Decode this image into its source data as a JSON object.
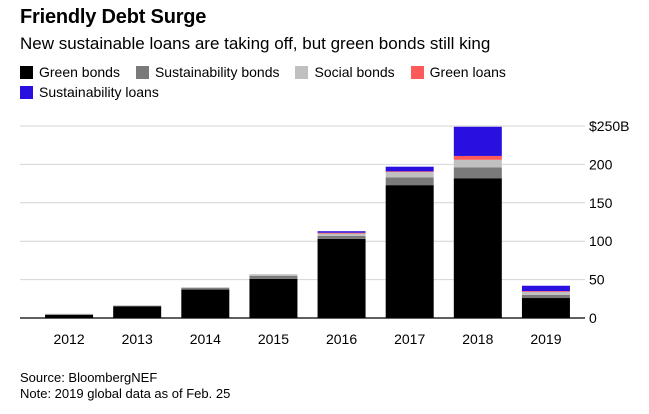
{
  "title": "Friendly Debt Surge",
  "subtitle": "New sustainable loans are taking off, but green bonds still king",
  "legend": [
    {
      "label": "Green bonds",
      "color": "#000000"
    },
    {
      "label": "Sustainability bonds",
      "color": "#7a7a7a"
    },
    {
      "label": "Social bonds",
      "color": "#c0c0c0"
    },
    {
      "label": "Green loans",
      "color": "#ff5a5a"
    },
    {
      "label": "Sustainability loans",
      "color": "#2a10e0"
    }
  ],
  "source": "Source: BloombergNEF",
  "note": "Note: 2019 global data as of Feb. 25",
  "chart_data": {
    "type": "bar",
    "stacked": true,
    "categories": [
      "2012",
      "2013",
      "2014",
      "2015",
      "2016",
      "2017",
      "2018",
      "2019"
    ],
    "series": [
      {
        "name": "Green bonds",
        "color": "#000000",
        "values": [
          4,
          15,
          37,
          51,
          103,
          173,
          182,
          26
        ]
      },
      {
        "name": "Sustainability bonds",
        "color": "#7a7a7a",
        "values": [
          1,
          1,
          2,
          4,
          4,
          10,
          14,
          4
        ]
      },
      {
        "name": "Social bonds",
        "color": "#c0c0c0",
        "values": [
          0.5,
          0.5,
          1,
          2,
          3,
          7,
          10,
          4
        ]
      },
      {
        "name": "Green loans",
        "color": "#ff5a5a",
        "values": [
          0,
          0,
          0,
          0,
          1,
          1,
          5,
          1
        ]
      },
      {
        "name": "Sustainability loans",
        "color": "#2a10e0",
        "values": [
          0,
          0,
          0,
          0,
          2,
          6,
          38,
          7
        ]
      }
    ],
    "ylim": [
      0,
      250
    ],
    "yticks": [
      0,
      50,
      100,
      150,
      200,
      250
    ],
    "ytick_labels": [
      "0",
      "50",
      "100",
      "150",
      "200",
      "$250B"
    ],
    "grid": true,
    "y_axis_side": "right"
  }
}
